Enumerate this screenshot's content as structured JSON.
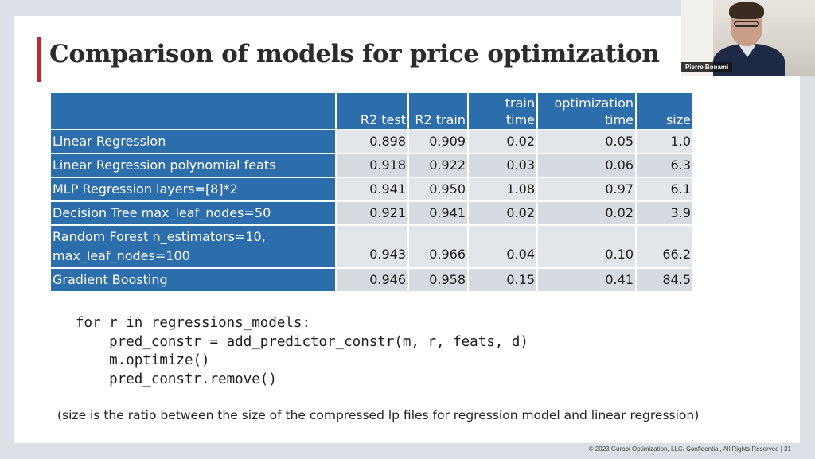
{
  "slide": {
    "title": "Comparison of models for price optimization",
    "table": {
      "headers": [
        {
          "line1": "",
          "line2": ""
        },
        {
          "line1": "",
          "line2": "R2 test"
        },
        {
          "line1": "",
          "line2": "R2 train"
        },
        {
          "line1": "train",
          "line2": "time"
        },
        {
          "line1": "optimization",
          "line2": "time"
        },
        {
          "line1": "",
          "line2": "size"
        }
      ],
      "rows": [
        {
          "model": "Linear Regression",
          "model_line2": "",
          "r2_test": "0.898",
          "r2_train": "0.909",
          "train_time": "0.02",
          "opt_time": "0.05",
          "size": "1.0"
        },
        {
          "model": "Linear Regression polynomial feats",
          "model_line2": "",
          "r2_test": "0.918",
          "r2_train": "0.922",
          "train_time": "0.03",
          "opt_time": "0.06",
          "size": "6.3"
        },
        {
          "model": "MLP Regression layers=[8]*2",
          "model_line2": "",
          "r2_test": "0.941",
          "r2_train": "0.950",
          "train_time": "1.08",
          "opt_time": "0.97",
          "size": "6.1"
        },
        {
          "model": "Decision Tree max_leaf_nodes=50",
          "model_line2": "",
          "r2_test": "0.921",
          "r2_train": "0.941",
          "train_time": "0.02",
          "opt_time": "0.02",
          "size": "3.9"
        },
        {
          "model": "Random Forest n_estimators=10,",
          "model_line2": "max_leaf_nodes=100",
          "r2_test": "0.943",
          "r2_train": "0.966",
          "train_time": "0.04",
          "opt_time": "0.10",
          "size": "66.2"
        },
        {
          "model": "Gradient Boosting",
          "model_line2": "",
          "r2_test": "0.946",
          "r2_train": "0.958",
          "train_time": "0.15",
          "opt_time": "0.41",
          "size": "84.5"
        }
      ]
    },
    "code": [
      "for r in regressions_models:",
      "    pred_constr = add_predictor_constr(m, r, feats, d)",
      "    m.optimize()",
      "    pred_constr.remove()"
    ],
    "note": "(size is the ratio between the size of the compressed lp files for regression model and linear regression)",
    "copyright": "© 2023 Gurobi Optimization, LLC. Confidential, All Rights Reserved | 21"
  },
  "video": {
    "participant_name": "Pierre Bonami"
  },
  "colors": {
    "accent_red": "#c3262f",
    "table_header_blue": "#2c6dab",
    "cell_gray": "#e2e5ea"
  }
}
